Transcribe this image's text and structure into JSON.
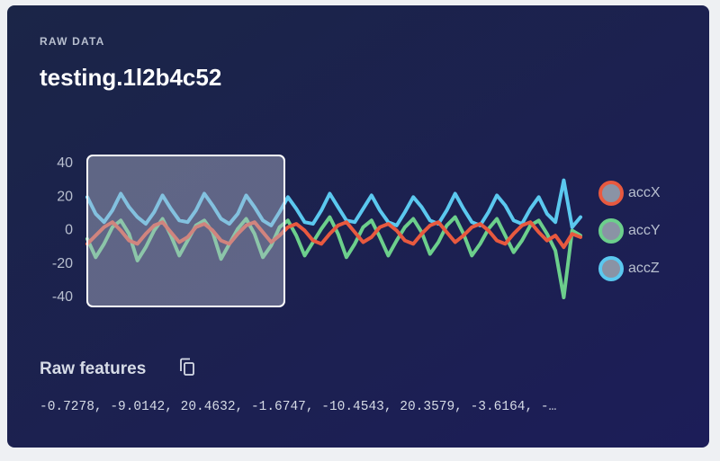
{
  "header": {
    "label": "RAW DATA",
    "title": "testing.1l2b4c52"
  },
  "chart_data": {
    "type": "line",
    "ylim": [
      -40,
      40
    ],
    "yticks": [
      40,
      20,
      0,
      -20,
      -40
    ],
    "grid": false,
    "legend": "right",
    "series": [
      {
        "name": "accX",
        "color": "#e8593f",
        "values": [
          -8,
          -3,
          2,
          5,
          0,
          -6,
          -8,
          -2,
          3,
          5,
          -1,
          -7,
          -4,
          2,
          4,
          0,
          -6,
          -8,
          -2,
          3,
          5,
          -1,
          -7,
          -3,
          2,
          4,
          0,
          -6,
          -8,
          -2,
          3,
          5,
          -1,
          -7,
          -4,
          2,
          4,
          0,
          -6,
          -8,
          -2,
          3,
          5,
          -1,
          -7,
          -3,
          2,
          4,
          0,
          -6,
          -8,
          -2,
          3,
          5,
          -1,
          -6,
          -3,
          -10,
          -2,
          -4
        ]
      },
      {
        "name": "accY",
        "color": "#6ccf8c",
        "values": [
          -5,
          -16,
          -8,
          2,
          6,
          -2,
          -18,
          -10,
          0,
          7,
          -3,
          -15,
          -6,
          3,
          6,
          -1,
          -17,
          -8,
          1,
          7,
          -2,
          -16,
          -9,
          2,
          6,
          -3,
          -15,
          -7,
          1,
          8,
          -2,
          -16,
          -8,
          2,
          6,
          -4,
          -15,
          -6,
          2,
          7,
          -1,
          -14,
          -7,
          3,
          8,
          -2,
          -15,
          -8,
          1,
          7,
          -3,
          -13,
          -6,
          3,
          6,
          -2,
          -12,
          -40,
          0,
          -3
        ]
      },
      {
        "name": "accZ",
        "color": "#5bc8ef",
        "values": [
          20,
          10,
          5,
          12,
          22,
          14,
          8,
          4,
          11,
          21,
          13,
          6,
          5,
          12,
          22,
          15,
          7,
          4,
          10,
          21,
          14,
          6,
          3,
          11,
          20,
          13,
          5,
          4,
          12,
          22,
          14,
          6,
          5,
          13,
          21,
          12,
          5,
          3,
          11,
          20,
          14,
          6,
          4,
          12,
          22,
          13,
          5,
          3,
          11,
          21,
          15,
          6,
          4,
          13,
          20,
          10,
          5,
          30,
          2,
          8
        ]
      }
    ]
  },
  "features": {
    "heading": "Raw features",
    "text": "-0.7278, -9.0142, 20.4632, -1.6747, -10.4543, 20.3579, -3.6164, -…"
  }
}
